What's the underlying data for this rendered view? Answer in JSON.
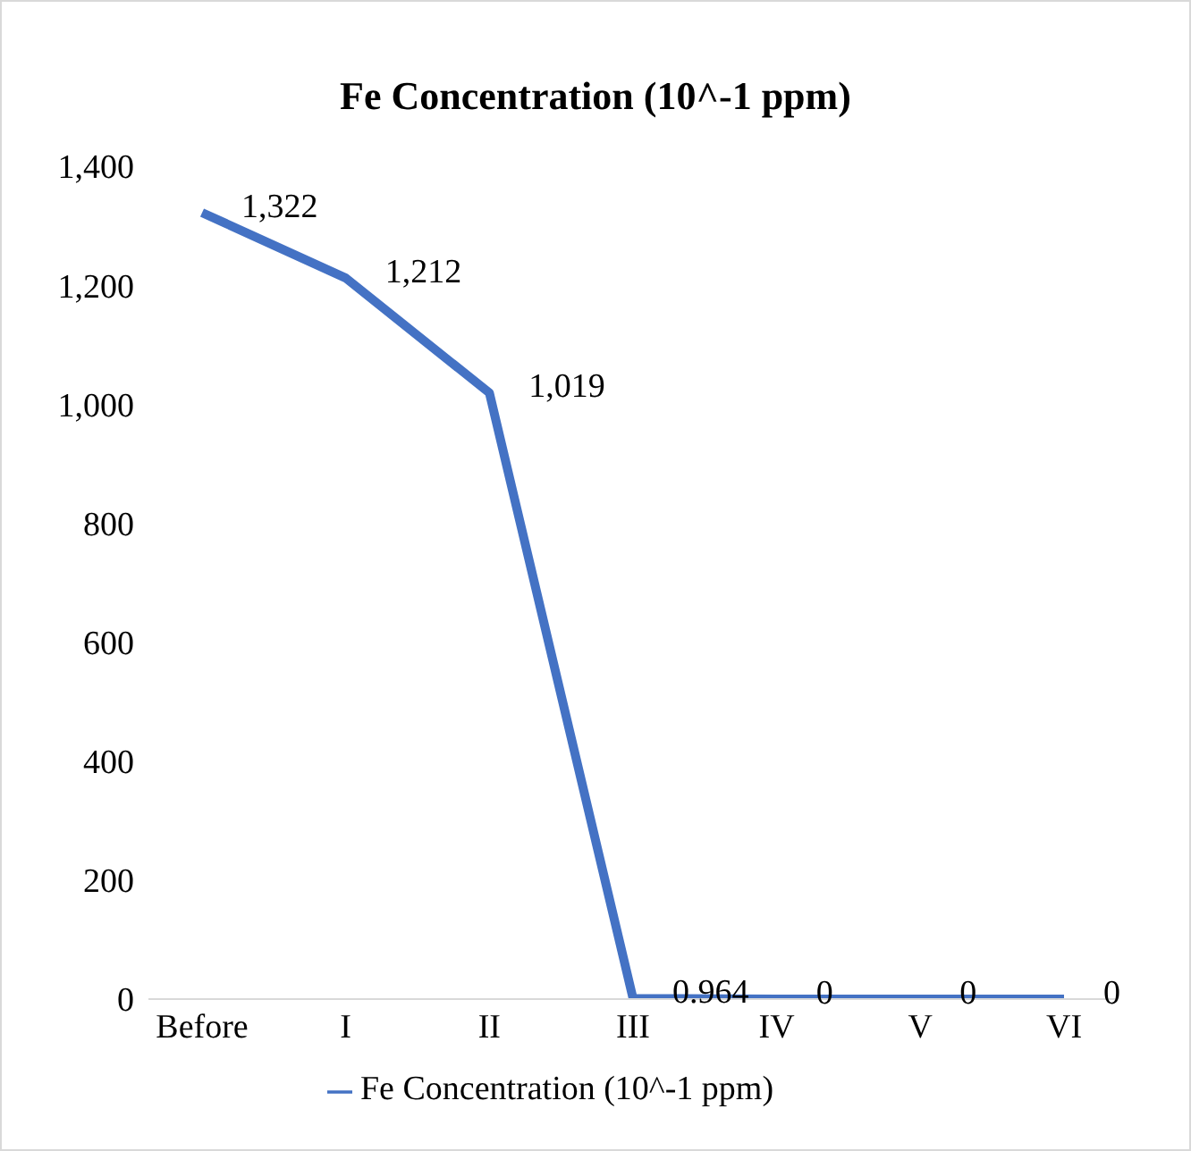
{
  "chart_data": {
    "type": "line",
    "title": "Fe Concentration (10^-1 ppm)",
    "categories": [
      "Before",
      "I",
      "II",
      "III",
      "IV",
      "V",
      "VI"
    ],
    "series": [
      {
        "name": "Fe Concentration (10^-1 ppm)",
        "color": "#4472c4",
        "values": [
          1322,
          1212,
          1019,
          0.964,
          0,
          0,
          0
        ],
        "value_labels": [
          "1,322",
          "1,212",
          "1,019",
          "0.964",
          "0",
          "0",
          "0"
        ]
      }
    ],
    "ylim": [
      0,
      1400
    ],
    "yticks": [
      {
        "value": 0,
        "label": "0"
      },
      {
        "value": 200,
        "label": "200"
      },
      {
        "value": 400,
        "label": "400"
      },
      {
        "value": 600,
        "label": "600"
      },
      {
        "value": 800,
        "label": "800"
      },
      {
        "value": 1000,
        "label": "1,000"
      },
      {
        "value": 1200,
        "label": "1,200"
      },
      {
        "value": 1400,
        "label": "1,400"
      }
    ],
    "grid": false,
    "legend": "bottom",
    "marker": "none",
    "line_style": "solid"
  }
}
